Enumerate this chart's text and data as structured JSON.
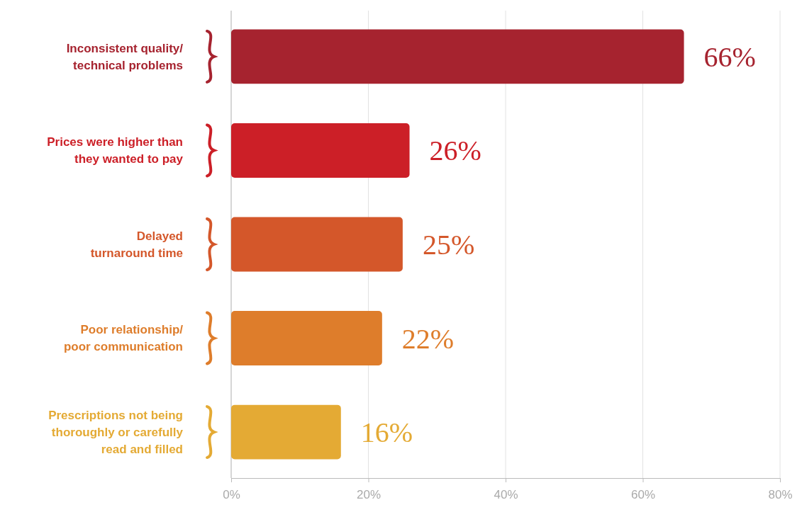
{
  "chart_data": {
    "type": "bar",
    "orientation": "horizontal",
    "categories": [
      "Inconsistent quality/\ntechnical problems",
      "Prices were higher than\nthey wanted to pay",
      "Delayed\nturnaround time",
      "Poor relationship/\npoor communication",
      "Prescriptions not being\nthoroughly or carefully\nread and filled"
    ],
    "values": [
      66,
      26,
      25,
      22,
      16
    ],
    "colors": [
      "#a6232f",
      "#cc1f27",
      "#d4572a",
      "#de7d2b",
      "#e4aa34"
    ],
    "value_labels": [
      "66%",
      "26%",
      "25%",
      "22%",
      "16%"
    ],
    "xlim": [
      0,
      80
    ],
    "xticks": [
      {
        "value": 0,
        "label": "0%"
      },
      {
        "value": 20,
        "label": "20%"
      },
      {
        "value": 40,
        "label": "40%"
      },
      {
        "value": 60,
        "label": "60%"
      },
      {
        "value": 80,
        "label": "80%"
      }
    ],
    "grid": "x"
  }
}
